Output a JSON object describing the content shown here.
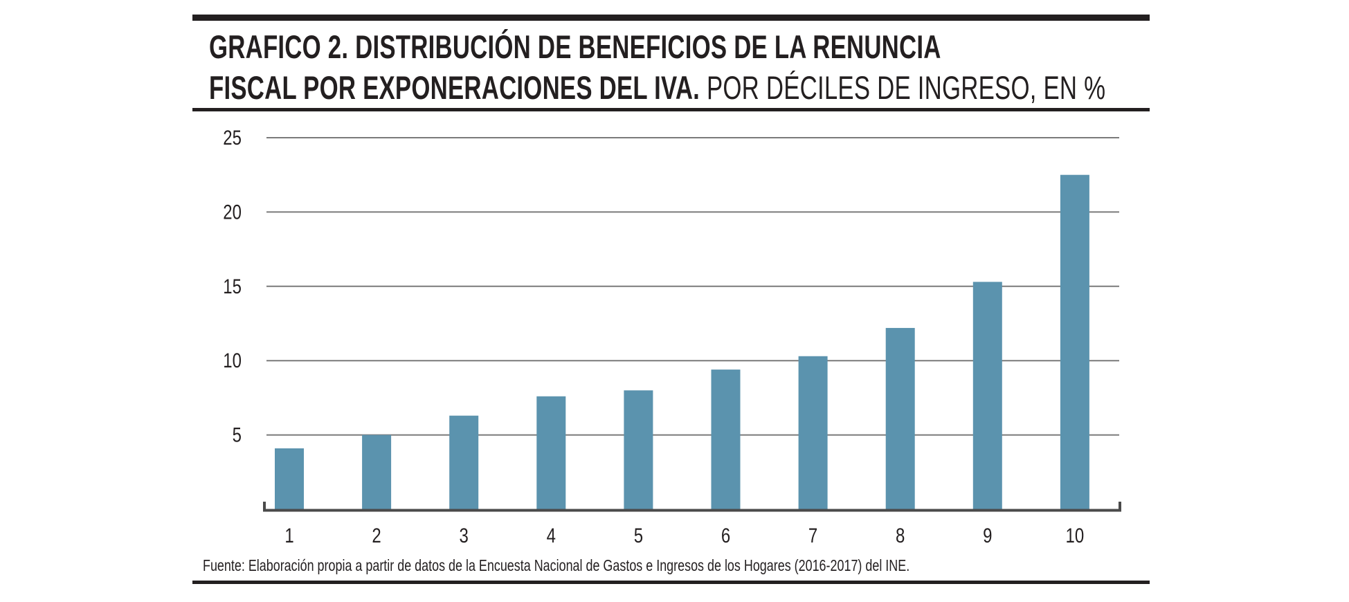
{
  "header": {
    "title_bold_line1": "GRAFICO 2. DISTRIBUCIÓN DE BENEFICIOS DE LA RENUNCIA",
    "title_bold_line2": "FISCAL POR EXPONERACIONES DEL IVA.",
    "title_light_line2": " POR DÉCILES DE INGRESO, EN %"
  },
  "footnote": "Fuente: Elaboración propia a partir de datos de la Encuesta Nacional de Gastos e Ingresos de los Hogares (2016-2017) del INE.",
  "colors": {
    "bar": "#5b93ae",
    "gridline": "#7a7a7a",
    "axis": "#4a4a4a",
    "text": "#231f20"
  },
  "chart_data": {
    "type": "bar",
    "title": "GRAFICO 2. DISTRIBUCIÓN DE BENEFICIOS DE LA RENUNCIA FISCAL POR EXPONERACIONES DEL IVA. POR DÉCILES DE INGRESO, EN %",
    "xlabel": "",
    "ylabel": "",
    "categories": [
      "1",
      "2",
      "3",
      "4",
      "5",
      "6",
      "7",
      "8",
      "9",
      "10"
    ],
    "values": [
      4.1,
      5.0,
      6.3,
      7.6,
      8.0,
      9.4,
      10.3,
      12.2,
      15.3,
      22.5
    ],
    "ylim": [
      0,
      25
    ],
    "yticks": [
      5,
      10,
      15,
      20,
      25
    ],
    "ytick_labels": [
      "5",
      "10",
      "15",
      "20",
      "25"
    ],
    "grid": true,
    "legend": "none"
  }
}
